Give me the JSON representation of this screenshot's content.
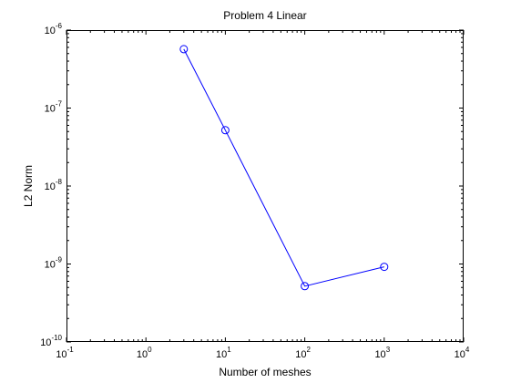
{
  "chart_data": {
    "type": "line",
    "title": "Problem 4 Linear",
    "xlabel": "Number of meshes",
    "ylabel": "L2 Norm",
    "xscale": "log",
    "yscale": "log",
    "xlim": [
      0.1,
      10000
    ],
    "ylim": [
      1e-10,
      1e-06
    ],
    "x_ticks": [
      {
        "base": "10",
        "exp": "-1",
        "value": 0.1
      },
      {
        "base": "10",
        "exp": "0",
        "value": 1
      },
      {
        "base": "10",
        "exp": "1",
        "value": 10
      },
      {
        "base": "10",
        "exp": "2",
        "value": 100
      },
      {
        "base": "10",
        "exp": "3",
        "value": 1000
      },
      {
        "base": "10",
        "exp": "4",
        "value": 10000
      }
    ],
    "y_ticks": [
      {
        "base": "10",
        "exp": "-10",
        "value": 1e-10
      },
      {
        "base": "10",
        "exp": "-9",
        "value": 1e-09
      },
      {
        "base": "10",
        "exp": "-8",
        "value": 1e-08
      },
      {
        "base": "10",
        "exp": "-7",
        "value": 1e-07
      },
      {
        "base": "10",
        "exp": "-6",
        "value": 1e-06
      }
    ],
    "grid": false,
    "series": [
      {
        "color": "#0000ff",
        "marker": "circle",
        "x": [
          3,
          10,
          100,
          1000
        ],
        "y": [
          5.7e-07,
          5.2e-08,
          5.2e-10,
          9.2e-10
        ]
      }
    ]
  }
}
